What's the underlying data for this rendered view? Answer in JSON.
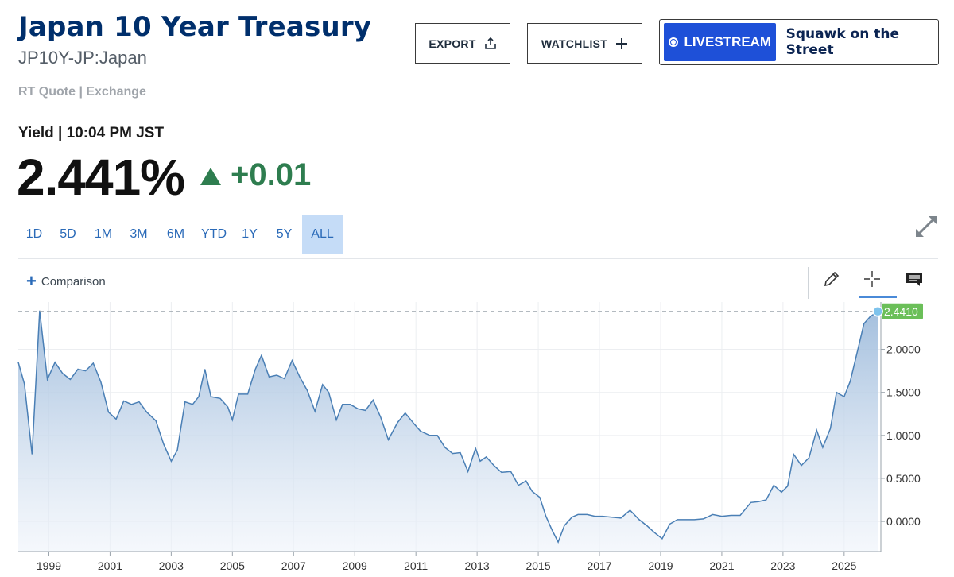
{
  "header": {
    "title": "Japan 10 Year Treasury",
    "symbol": "JP10Y-JP:Japan",
    "rt_quote": "RT Quote | Exchange"
  },
  "buttons": {
    "export": "EXPORT",
    "export_icon": "share-upload-icon",
    "watchlist": "WATCHLIST",
    "watchlist_icon": "plus-icon",
    "livestream": "LIVESTREAM",
    "livestream_show": "Squawk on the Street"
  },
  "quote": {
    "yield_label": "Yield | 10:04 PM JST",
    "price": "2.441%",
    "change": "+0.01",
    "direction": "up"
  },
  "ranges": [
    {
      "label": "1D",
      "active": false
    },
    {
      "label": "5D",
      "active": false
    },
    {
      "label": "1M",
      "active": false
    },
    {
      "label": "3M",
      "active": false
    },
    {
      "label": "6M",
      "active": false
    },
    {
      "label": "YTD",
      "active": false
    },
    {
      "label": "1Y",
      "active": false
    },
    {
      "label": "5Y",
      "active": false
    },
    {
      "label": "ALL",
      "active": true
    }
  ],
  "comparison_label": "Comparison",
  "toolbar": {
    "icons": [
      "pencil-icon",
      "crosshair-icon",
      "comment-icon"
    ],
    "active": "crosshair-icon"
  },
  "colors": {
    "title": "#002f6c",
    "accent": "#1e50d8",
    "up": "#2e7d4f",
    "line": "#4a7fb5",
    "last_price_label": "#6bbf59"
  },
  "chart_data": {
    "type": "area",
    "x_start": 1998.0,
    "x_end": 2026.2,
    "ylim": [
      -0.35,
      2.55
    ],
    "yticks": [
      0.0,
      0.5,
      1.0,
      1.5,
      2.0
    ],
    "ytick_labels": [
      "0.0000",
      "0.5000",
      "1.0000",
      "1.5000",
      "2.0000"
    ],
    "xticks": [
      1999,
      2001,
      2003,
      2005,
      2007,
      2009,
      2011,
      2013,
      2015,
      2017,
      2019,
      2021,
      2023,
      2025
    ],
    "last_value": 2.441,
    "last_value_label": "2.4410",
    "grid": true,
    "series": [
      {
        "x": [
          1998.0,
          1998.2,
          1998.45,
          1998.7,
          1998.95,
          1999.2,
          1999.45,
          1999.7,
          1999.95,
          2000.2,
          2000.45,
          2000.7,
          2000.95,
          2001.2,
          2001.45,
          2001.7,
          2001.95,
          2002.2,
          2002.5,
          2002.75,
          2003.0,
          2003.2,
          2003.45,
          2003.7,
          2003.9,
          2004.1,
          2004.3,
          2004.6,
          2004.85,
          2005.0,
          2005.2,
          2005.5,
          2005.75,
          2005.95,
          2006.2,
          2006.45,
          2006.7,
          2006.95,
          2007.2,
          2007.45,
          2007.7,
          2007.95,
          2008.15,
          2008.4,
          2008.6,
          2008.85,
          2009.1,
          2009.35,
          2009.6,
          2009.85,
          2010.1,
          2010.4,
          2010.65,
          2010.95,
          2011.15,
          2011.45,
          2011.7,
          2011.95,
          2012.2,
          2012.45,
          2012.7,
          2012.95,
          2013.1,
          2013.3,
          2013.55,
          2013.8,
          2014.1,
          2014.35,
          2014.6,
          2014.8,
          2015.05,
          2015.25,
          2015.45,
          2015.65,
          2015.85,
          2016.1,
          2016.3,
          2016.6,
          2016.85,
          2017.1,
          2017.4,
          2017.7,
          2018.0,
          2018.3,
          2018.55,
          2018.8,
          2019.05,
          2019.3,
          2019.55,
          2019.75,
          2020.1,
          2020.4,
          2020.7,
          2021.0,
          2021.3,
          2021.6,
          2021.95,
          2022.2,
          2022.45,
          2022.7,
          2022.95,
          2023.15,
          2023.35,
          2023.6,
          2023.85,
          2024.1,
          2024.3,
          2024.55,
          2024.75,
          2025.0,
          2025.2,
          2025.45,
          2025.65,
          2025.85,
          2026.1
        ],
        "y": [
          1.85,
          1.6,
          0.78,
          2.45,
          1.65,
          1.85,
          1.72,
          1.65,
          1.77,
          1.75,
          1.84,
          1.62,
          1.27,
          1.19,
          1.4,
          1.36,
          1.39,
          1.27,
          1.17,
          0.9,
          0.7,
          0.83,
          1.39,
          1.36,
          1.45,
          1.77,
          1.45,
          1.43,
          1.33,
          1.18,
          1.48,
          1.48,
          1.77,
          1.93,
          1.68,
          1.7,
          1.66,
          1.87,
          1.68,
          1.52,
          1.28,
          1.59,
          1.5,
          1.18,
          1.36,
          1.36,
          1.31,
          1.29,
          1.41,
          1.21,
          0.95,
          1.15,
          1.26,
          1.13,
          1.05,
          1.0,
          1.0,
          0.86,
          0.79,
          0.8,
          0.58,
          0.85,
          0.7,
          0.75,
          0.65,
          0.57,
          0.58,
          0.42,
          0.47,
          0.35,
          0.28,
          0.06,
          -0.1,
          -0.24,
          -0.05,
          0.05,
          0.08,
          0.08,
          0.06,
          0.06,
          0.05,
          0.04,
          0.13,
          0.02,
          -0.05,
          -0.13,
          -0.2,
          -0.03,
          0.02,
          0.02,
          0.02,
          0.03,
          0.08,
          0.06,
          0.07,
          0.07,
          0.22,
          0.23,
          0.25,
          0.42,
          0.34,
          0.41,
          0.78,
          0.65,
          0.74,
          1.06,
          0.86,
          1.08,
          1.5,
          1.45,
          1.63,
          2.0,
          2.3,
          2.38,
          2.441
        ]
      }
    ]
  }
}
